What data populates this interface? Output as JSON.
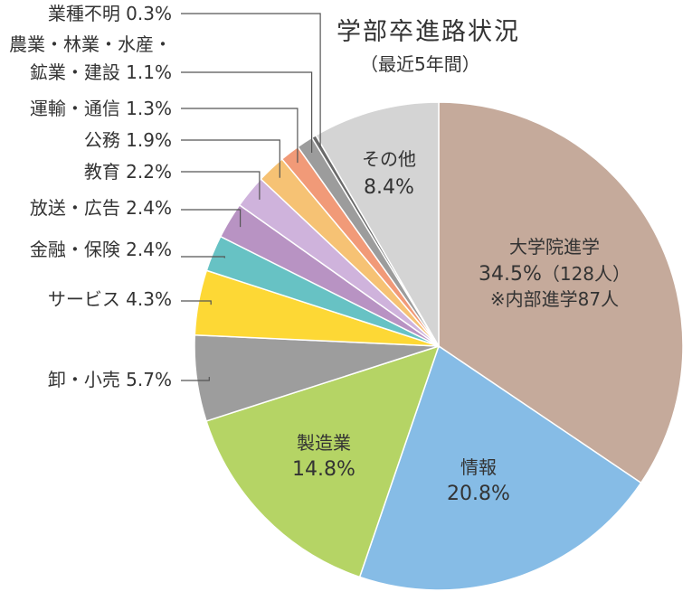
{
  "chart_data": {
    "type": "pie",
    "title": "学部卒進路状況",
    "subtitle": "（最近5年間）",
    "slices": [
      {
        "label": "大学院進学",
        "value": 34.5,
        "value_text": "34.5%",
        "note": "（128人）",
        "note2": "※内部進学87人",
        "color": "#c5aa9b"
      },
      {
        "label": "情報",
        "value": 20.8,
        "value_text": "20.8%",
        "color": "#86bce6"
      },
      {
        "label": "製造業",
        "value": 14.8,
        "value_text": "14.8%",
        "color": "#b5d465"
      },
      {
        "label": "卸・小売",
        "value": 5.7,
        "value_text": "5.7%",
        "color": "#9d9d9d"
      },
      {
        "label": "サービス",
        "value": 4.3,
        "value_text": "4.3%",
        "color": "#fdd835"
      },
      {
        "label": "金融・保険",
        "value": 2.4,
        "value_text": "2.4%",
        "color": "#67c2c4"
      },
      {
        "label": "放送・広告",
        "value": 2.4,
        "value_text": "2.4%",
        "color": "#b893c3"
      },
      {
        "label": "教育",
        "value": 2.2,
        "value_text": "2.2%",
        "color": "#cfb3dc"
      },
      {
        "label": "公務",
        "value": 1.9,
        "value_text": "1.9%",
        "color": "#f6c274"
      },
      {
        "label": "運輸・通信",
        "value": 1.3,
        "value_text": "1.3%",
        "color": "#f19a78"
      },
      {
        "label": "農業・林業・水産・鉱業・建設",
        "label_line1": "農業・林業・水産・",
        "label_line2": "鉱業・建設",
        "value": 1.1,
        "value_text": "1.1%",
        "color": "#9c9c9c"
      },
      {
        "label": "業種不明",
        "value": 0.3,
        "value_text": "0.3%",
        "color": "#6a6a6a"
      },
      {
        "label": "その他",
        "value": 8.4,
        "value_text": "8.4%",
        "color": "#d4d4d4"
      }
    ]
  }
}
